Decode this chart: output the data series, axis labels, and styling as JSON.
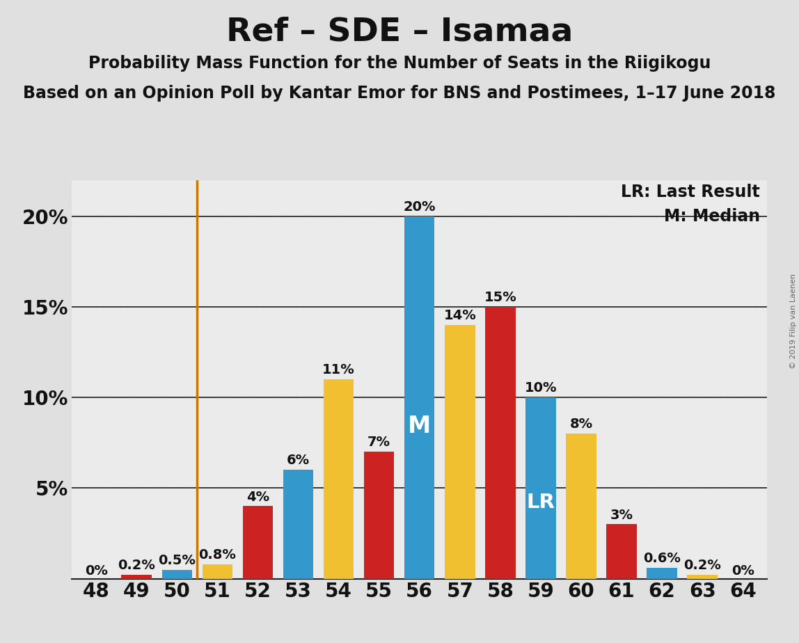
{
  "title": "Ref – SDE – Isamaa",
  "subtitle1": "Probability Mass Function for the Number of Seats in the Riigikogu",
  "subtitle2": "Based on an Opinion Poll by Kantar Emor for BNS and Postimees, 1–17 June 2018",
  "copyright": "© 2019 Filip van Laenen",
  "seats": [
    48,
    49,
    50,
    51,
    52,
    53,
    54,
    55,
    56,
    57,
    58,
    59,
    60,
    61,
    62,
    63,
    64
  ],
  "values": [
    0.0,
    0.2,
    0.5,
    0.8,
    4.0,
    6.0,
    11.0,
    7.0,
    20.0,
    14.0,
    15.0,
    10.0,
    8.0,
    3.0,
    0.6,
    0.2,
    0.0
  ],
  "colors": [
    "#3399cc",
    "#cc2222",
    "#3399cc",
    "#f0c030",
    "#cc2222",
    "#3399cc",
    "#f0c030",
    "#cc2222",
    "#3399cc",
    "#f0c030",
    "#cc2222",
    "#3399cc",
    "#f0c030",
    "#cc2222",
    "#3399cc",
    "#f0c030",
    "#cc2222"
  ],
  "labels": [
    "0%",
    "0.2%",
    "0.5%",
    "0.8%",
    "4%",
    "6%",
    "11%",
    "7%",
    "20%",
    "14%",
    "15%",
    "10%",
    "8%",
    "3%",
    "0.6%",
    "0.2%",
    "0%"
  ],
  "show_label": [
    true,
    true,
    true,
    true,
    true,
    true,
    true,
    true,
    true,
    true,
    true,
    true,
    true,
    true,
    true,
    true,
    true
  ],
  "median_seat": 56,
  "lr_seat": 59,
  "lr_line_seat": 50.5,
  "ylim": [
    0,
    22
  ],
  "bg_color": "#e0e0e0",
  "plot_bg_color": "#ebebeb",
  "grid_color": "#999999",
  "solid_line_color": "#222222",
  "lr_line_color": "#cc7700",
  "title_fontsize": 34,
  "subtitle_fontsize": 17,
  "label_fontsize": 14,
  "tick_fontsize": 20,
  "annotation_fontsize": 17,
  "bar_width": 0.75
}
